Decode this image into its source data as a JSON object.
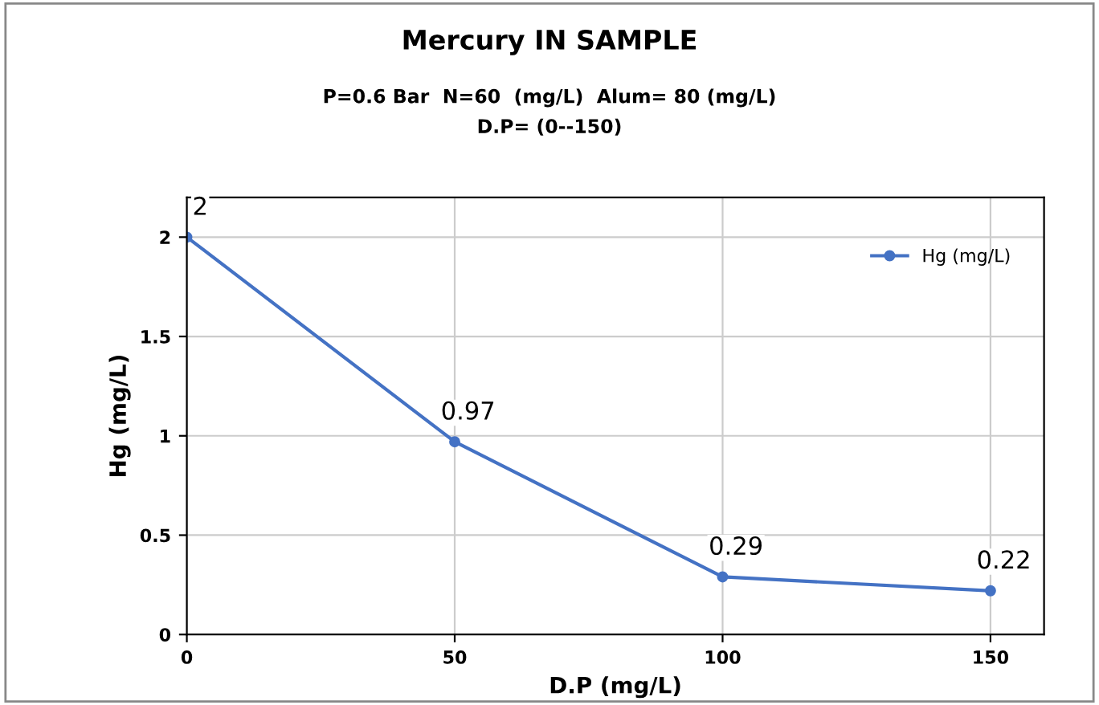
{
  "chart_data": {
    "type": "line",
    "title": "Mercury IN SAMPLE",
    "subtitle": "P=0.6 Bar  N=60  (mg/L)  Alum= 80 (mg/L)\nD.P= (0--150)",
    "xlabel": "D.P (mg/L)",
    "ylabel": "Hg (mg/L)",
    "x": [
      0,
      50,
      100,
      150
    ],
    "series": [
      {
        "name": "Hg (mg/L)",
        "color": "#4472c4",
        "values": [
          2,
          0.97,
          0.29,
          0.22
        ]
      }
    ],
    "xlim": [
      0,
      160
    ],
    "xticks": [
      0,
      50,
      100,
      150
    ],
    "ylim": [
      0,
      2.2
    ],
    "yticks": [
      0,
      0.5,
      1,
      1.5,
      2
    ],
    "grid": true,
    "legend": "top right",
    "marker": "circle",
    "line_style": "solid",
    "data_labels": true
  }
}
